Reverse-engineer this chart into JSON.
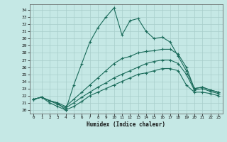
{
  "xlabel": "Humidex (Indice chaleur)",
  "background_color": "#c5e8e5",
  "line_color": "#1a6b5a",
  "grid_color": "#a8ceca",
  "xlim": [
    -0.5,
    23.5
  ],
  "ylim": [
    19.5,
    34.8
  ],
  "xticks": [
    0,
    1,
    2,
    3,
    4,
    5,
    6,
    7,
    8,
    9,
    10,
    11,
    12,
    13,
    14,
    15,
    16,
    17,
    18,
    19,
    20,
    21,
    22,
    23
  ],
  "yticks": [
    20,
    21,
    22,
    23,
    24,
    25,
    26,
    27,
    28,
    29,
    30,
    31,
    32,
    33,
    34
  ],
  "s1_x": [
    0,
    1,
    2,
    3,
    4,
    5,
    6,
    7,
    8,
    9,
    10,
    11,
    12,
    13,
    14,
    15,
    16,
    17,
    18,
    19,
    20,
    21,
    22,
    23
  ],
  "s1_y": [
    21.5,
    21.8,
    21.3,
    21.0,
    20.0,
    23.5,
    26.5,
    29.5,
    31.5,
    33.0,
    34.3,
    30.5,
    32.5,
    32.8,
    31.0,
    30.0,
    30.2,
    29.5,
    27.5,
    25.5,
    23.0,
    23.2,
    22.8,
    22.5
  ],
  "s2_x": [
    0,
    1,
    2,
    3,
    4,
    5,
    6,
    7,
    8,
    9,
    10,
    11,
    12,
    13,
    14,
    15,
    16,
    17,
    18,
    19,
    20,
    21,
    22,
    23
  ],
  "s2_y": [
    21.5,
    21.8,
    21.3,
    21.0,
    20.5,
    21.5,
    22.5,
    23.5,
    24.5,
    25.5,
    26.5,
    27.2,
    27.5,
    28.0,
    28.2,
    28.3,
    28.5,
    28.5,
    27.8,
    26.0,
    23.0,
    23.2,
    22.8,
    22.5
  ],
  "s3_x": [
    0,
    1,
    2,
    3,
    4,
    5,
    6,
    7,
    8,
    9,
    10,
    11,
    12,
    13,
    14,
    15,
    16,
    17,
    18,
    19,
    20,
    21,
    22,
    23
  ],
  "s3_y": [
    21.5,
    21.8,
    21.3,
    20.8,
    20.3,
    21.0,
    21.8,
    22.5,
    23.2,
    23.8,
    24.5,
    25.0,
    25.5,
    26.0,
    26.5,
    26.8,
    27.0,
    27.0,
    26.5,
    25.0,
    22.8,
    23.0,
    22.6,
    22.3
  ],
  "s4_x": [
    0,
    1,
    2,
    3,
    4,
    5,
    6,
    7,
    8,
    9,
    10,
    11,
    12,
    13,
    14,
    15,
    16,
    17,
    18,
    19,
    20,
    21,
    22,
    23
  ],
  "s4_y": [
    21.5,
    21.8,
    21.0,
    20.5,
    20.0,
    20.5,
    21.2,
    22.0,
    22.5,
    23.0,
    23.5,
    24.0,
    24.5,
    25.0,
    25.2,
    25.5,
    25.8,
    25.8,
    25.5,
    23.5,
    22.5,
    22.5,
    22.3,
    22.0
  ]
}
